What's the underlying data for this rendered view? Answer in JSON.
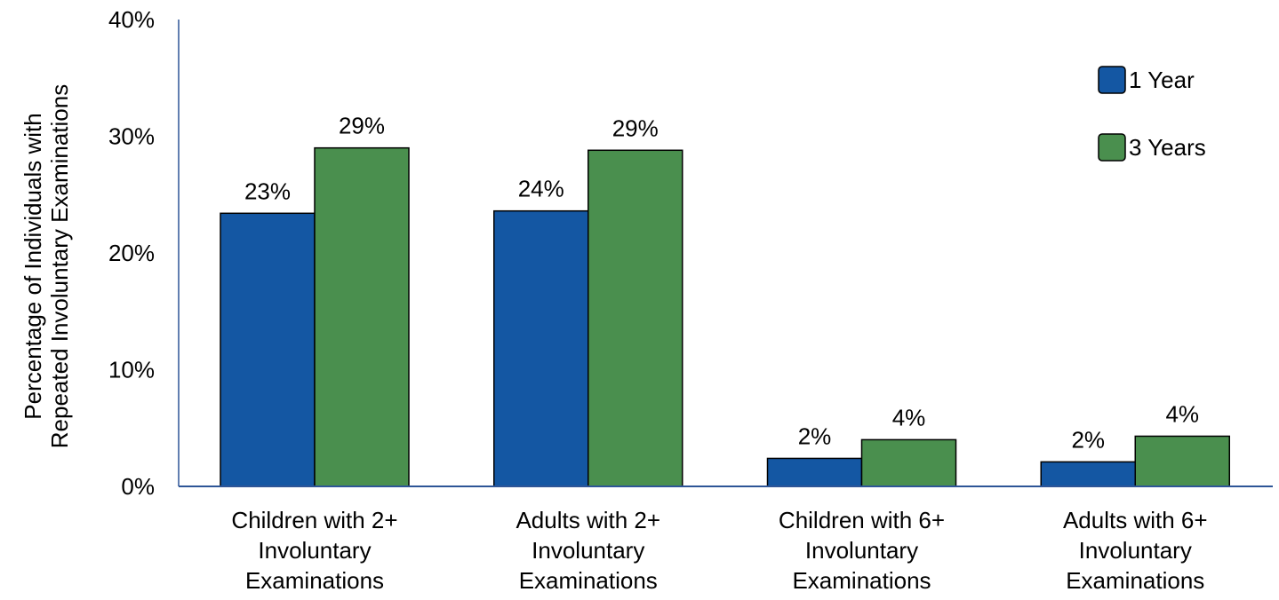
{
  "chart_data": {
    "type": "bar",
    "title": "",
    "xlabel": "",
    "ylabel_lines": [
      "Percentage of Individuals with",
      "Repeated Involuntary Examinations"
    ],
    "ylim": [
      0,
      40
    ],
    "y_ticks": [
      0,
      10,
      20,
      30,
      40
    ],
    "y_tick_labels": [
      "0%",
      "10%",
      "20%",
      "30%",
      "40%"
    ],
    "grid": false,
    "legend_position": "top-right",
    "categories": [
      [
        "Children with 2+",
        "Involuntary",
        "Examinations"
      ],
      [
        "Adults with 2+",
        "Involuntary",
        "Examinations"
      ],
      [
        "Children with 6+",
        "Involuntary",
        "Examinations"
      ],
      [
        "Adults with 6+",
        "Involuntary",
        "Examinations"
      ]
    ],
    "series": [
      {
        "name": "1 Year",
        "color": "#1457A3",
        "values": [
          23.4,
          23.6,
          2.4,
          2.1
        ],
        "labels": [
          "23%",
          "24%",
          "2%",
          "2%"
        ]
      },
      {
        "name": "3 Years",
        "color": "#4A8F4E",
        "values": [
          29.0,
          28.8,
          4.0,
          4.3
        ],
        "labels": [
          "29%",
          "29%",
          "4%",
          "4%"
        ]
      }
    ],
    "axis_color": "#2E5597"
  }
}
